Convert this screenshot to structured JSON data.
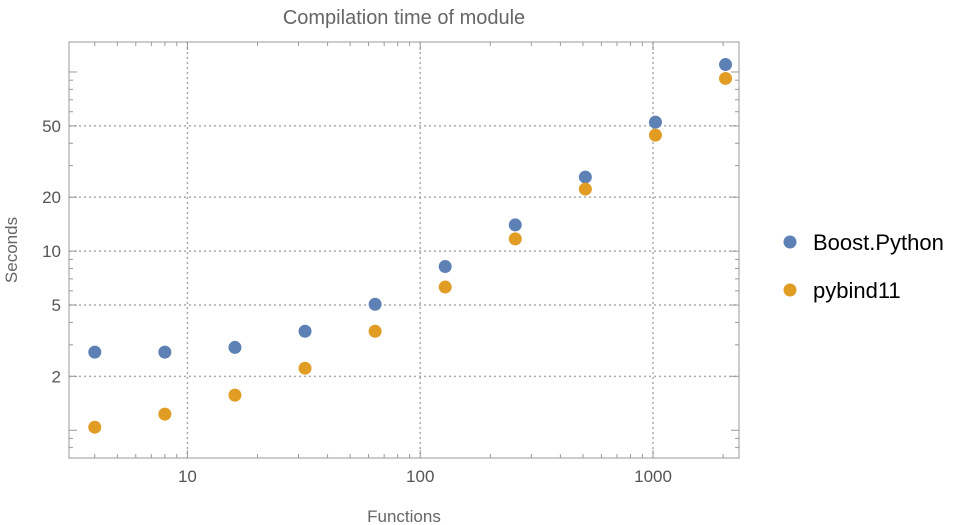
{
  "chart_data": {
    "type": "scatter",
    "title": "Compilation time of module",
    "xlabel": "Functions",
    "ylabel": "Seconds",
    "xscale": "log",
    "yscale": "log",
    "xlim": [
      3.1,
      2340
    ],
    "ylim": [
      0.7,
      147
    ],
    "xticks": [
      10,
      100,
      1000
    ],
    "xtick_labels": [
      "10",
      "100",
      "1000"
    ],
    "yticks": [
      2,
      5,
      10,
      20,
      50
    ],
    "ytick_labels": [
      "2",
      "5",
      "10",
      "20",
      "50"
    ],
    "grid": true,
    "legend": "right",
    "x": [
      4,
      8,
      16,
      32,
      64,
      128,
      256,
      512,
      1024,
      2048
    ],
    "series": [
      {
        "name": "Boost.Python",
        "color": "#5E81B5",
        "values": [
          2.73,
          2.73,
          2.9,
          3.57,
          5.05,
          8.2,
          14.0,
          25.9,
          52.5,
          110
        ]
      },
      {
        "name": "pybind11",
        "color": "#E19C24",
        "values": [
          1.04,
          1.23,
          1.57,
          2.22,
          3.57,
          6.3,
          11.7,
          22.2,
          44.4,
          92
        ]
      }
    ]
  }
}
